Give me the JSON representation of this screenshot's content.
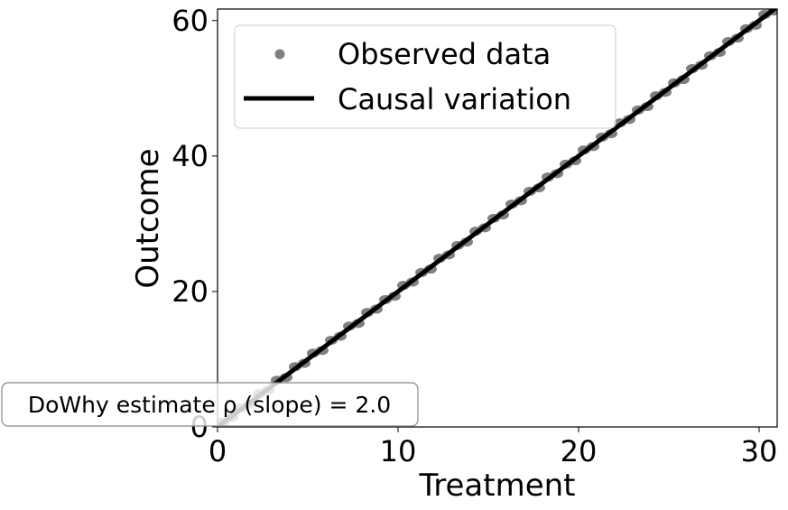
{
  "chart_data": {
    "type": "scatter",
    "xlabel": "Treatment",
    "ylabel": "Outcome",
    "xlim": [
      0,
      31
    ],
    "ylim": [
      0,
      61.7
    ],
    "xticks": [
      0,
      10,
      20,
      30
    ],
    "yticks": [
      0,
      20,
      40,
      60
    ],
    "grid": false,
    "legend_position": "top-left",
    "series": [
      {
        "name": "Observed data",
        "kind": "scatter",
        "color": "#808080",
        "points": [
          [
            0.3,
            0.7
          ],
          [
            0.8,
            1.4
          ],
          [
            1.3,
            2.8
          ],
          [
            1.8,
            3.4
          ],
          [
            2.3,
            4.9
          ],
          [
            2.8,
            5.4
          ],
          [
            3.3,
            6.9
          ],
          [
            3.8,
            7.3
          ],
          [
            4.3,
            8.9
          ],
          [
            4.8,
            9.4
          ],
          [
            5.3,
            10.9
          ],
          [
            5.8,
            11.3
          ],
          [
            6.3,
            12.8
          ],
          [
            6.8,
            13.4
          ],
          [
            7.3,
            14.9
          ],
          [
            7.8,
            15.3
          ],
          [
            8.3,
            16.9
          ],
          [
            8.8,
            17.4
          ],
          [
            9.3,
            18.8
          ],
          [
            9.8,
            19.3
          ],
          [
            10.3,
            20.9
          ],
          [
            10.8,
            21.4
          ],
          [
            11.3,
            22.8
          ],
          [
            11.8,
            23.3
          ],
          [
            12.3,
            24.9
          ],
          [
            12.8,
            25.4
          ],
          [
            13.3,
            26.8
          ],
          [
            13.8,
            27.3
          ],
          [
            14.3,
            28.9
          ],
          [
            14.8,
            29.4
          ],
          [
            15.3,
            30.8
          ],
          [
            15.8,
            31.3
          ],
          [
            16.3,
            32.9
          ],
          [
            16.8,
            33.4
          ],
          [
            17.3,
            34.8
          ],
          [
            17.8,
            35.3
          ],
          [
            18.3,
            36.9
          ],
          [
            18.8,
            37.4
          ],
          [
            19.3,
            38.8
          ],
          [
            19.8,
            39.3
          ],
          [
            20.3,
            40.9
          ],
          [
            20.8,
            41.4
          ],
          [
            21.3,
            42.8
          ],
          [
            21.8,
            43.3
          ],
          [
            22.3,
            44.9
          ],
          [
            22.8,
            45.4
          ],
          [
            23.3,
            46.8
          ],
          [
            23.8,
            47.3
          ],
          [
            24.3,
            48.9
          ],
          [
            24.8,
            49.4
          ],
          [
            25.3,
            50.8
          ],
          [
            25.8,
            51.3
          ],
          [
            26.3,
            52.9
          ],
          [
            26.8,
            53.4
          ],
          [
            27.3,
            54.8
          ],
          [
            27.8,
            55.3
          ],
          [
            28.3,
            56.9
          ],
          [
            28.8,
            57.4
          ],
          [
            29.3,
            58.8
          ],
          [
            29.8,
            59.3
          ],
          [
            30.3,
            60.9
          ],
          [
            30.8,
            61.4
          ]
        ]
      },
      {
        "name": "Causal variation",
        "kind": "line",
        "color": "#000000",
        "x": [
          0,
          31
        ],
        "y": [
          0,
          62
        ]
      }
    ],
    "annotation": "DoWhy estimate ρ (slope) = 2.0"
  }
}
